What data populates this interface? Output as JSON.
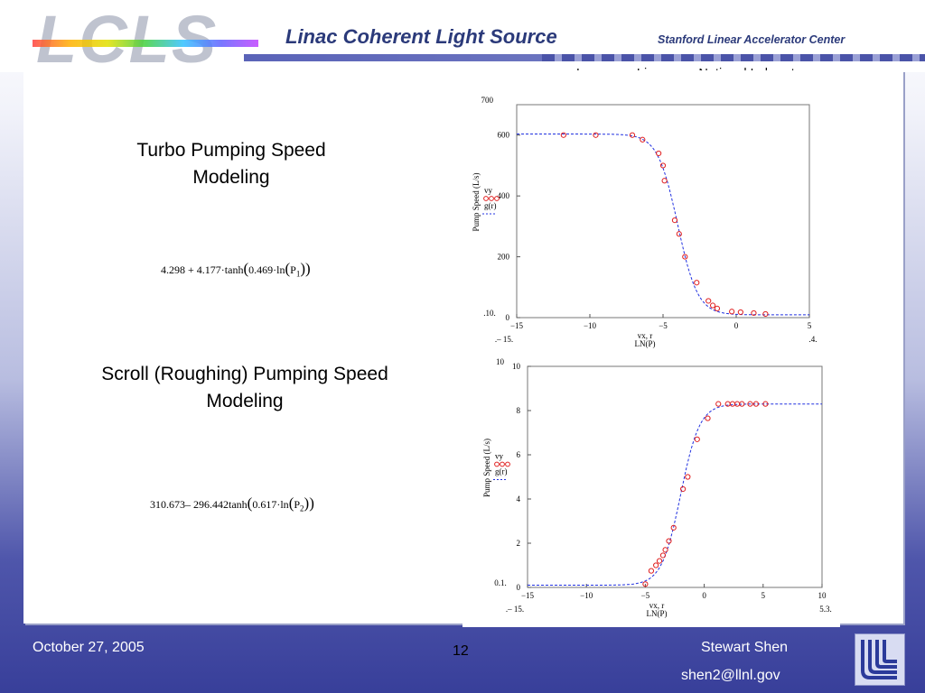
{
  "header": {
    "logo": "LCLS",
    "title": "Linac Coherent Light Source",
    "org": "Stanford Linear Accelerator Center",
    "lab": "Lawrence Livermore National Laboratory"
  },
  "sections": {
    "turbo_title": "Turbo Pumping Speed Modeling",
    "turbo_formula": {
      "a": "4.298",
      "op": "+",
      "b": "4.177·tanh",
      "c": "0.469·ln",
      "var": "P",
      "sub": "1"
    },
    "scroll_title": "Scroll (Roughing) Pumping Speed Modeling",
    "scroll_formula": {
      "a": "310.673",
      "op": "–",
      "b": "296.442tanh",
      "c": "0.617·ln",
      "var": "P",
      "sub": "2"
    }
  },
  "footer": {
    "date": "October 27,  2005",
    "page": "12",
    "author": "Stewart Shen",
    "email": "shen2@llnl.gov"
  },
  "colors": {
    "data": "#e02020",
    "fit": "#2030e0",
    "footer_bg": "#383f9a"
  },
  "chart_data": [
    {
      "type": "scatter",
      "ylabel": "Pump Speed (L/s)",
      "xlabel": "vx, r",
      "xlabel2": "LN(P)",
      "legend": [
        "vy",
        "g(r)"
      ],
      "legend_placement": "left",
      "xlim": [
        -15,
        5
      ],
      "ylim": [
        0,
        700
      ],
      "xticks": [
        -15,
        -10,
        -5,
        0,
        5
      ],
      "yticks": [
        0,
        200,
        400,
        600
      ],
      "ytick_top": "700",
      "corner_labels": {
        "ymin": ".10.",
        "xmin": ".– 15.",
        "xmax": ".4."
      },
      "series": [
        {
          "name": "vy",
          "style": "markers",
          "x": [
            -11.8,
            -9.6,
            -7.1,
            -6.4,
            -5.3,
            -5.0,
            -4.9,
            -4.2,
            -3.9,
            -3.5,
            -2.7,
            -1.9,
            -1.6,
            -1.3,
            -0.3,
            0.3,
            1.2,
            2.0
          ],
          "y": [
            600,
            600,
            600,
            585,
            540,
            500,
            450,
            320,
            275,
            200,
            115,
            55,
            40,
            30,
            20,
            18,
            15,
            12
          ]
        },
        {
          "name": "g(r)",
          "style": "dashed",
          "model": "tanh",
          "params": {
            "a": 306.3,
            "b": 297.2,
            "c": 0.73,
            "x0": -4.0
          }
        }
      ]
    },
    {
      "type": "scatter",
      "ylabel": "Pump Speed (L/s)",
      "xlabel": "vx, r",
      "xlabel2": "LN(P)",
      "legend": [
        "vy",
        "g(r)"
      ],
      "legend_placement": "left",
      "xlim": [
        -15,
        10
      ],
      "ylim": [
        0,
        10
      ],
      "xticks": [
        -15,
        -10,
        -5,
        0,
        5,
        10
      ],
      "yticks": [
        0,
        2,
        4,
        6,
        8,
        10
      ],
      "ytick_top": "10",
      "corner_labels": {
        "ymin": "0.1.",
        "xmin": ".– 15.",
        "xmax": "5.3."
      },
      "series": [
        {
          "name": "vy",
          "style": "markers",
          "x": [
            -5.0,
            -4.5,
            -4.1,
            -3.8,
            -3.5,
            -3.3,
            -3.0,
            -2.6,
            -1.8,
            -1.4,
            -0.6,
            0.3,
            1.2,
            2.0,
            2.4,
            2.8,
            3.2,
            3.9,
            4.4,
            5.2
          ],
          "y": [
            0.15,
            0.75,
            1.0,
            1.2,
            1.45,
            1.7,
            2.1,
            2.7,
            4.45,
            5.0,
            6.7,
            7.65,
            8.3,
            8.3,
            8.3,
            8.3,
            8.3,
            8.3,
            8.3,
            8.3
          ]
        },
        {
          "name": "g(r)",
          "style": "dashed",
          "model": "tanh",
          "params": {
            "a": 4.2,
            "b": 4.1,
            "c": 0.62,
            "x0": -2.0
          }
        }
      ]
    }
  ]
}
